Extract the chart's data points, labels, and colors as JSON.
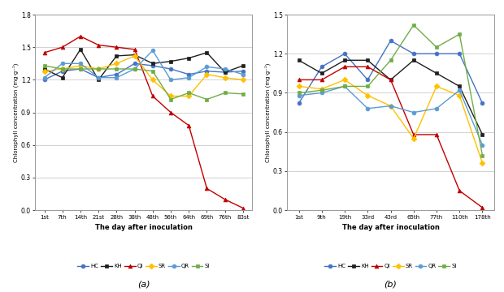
{
  "chart_a": {
    "x_labels": [
      "1st",
      "7th",
      "14th",
      "21st",
      "28th",
      "38th",
      "48th",
      "56th",
      "64th",
      "69th",
      "76th",
      "83st"
    ],
    "x_vals": [
      0,
      1,
      2,
      3,
      4,
      5,
      6,
      7,
      8,
      9,
      10,
      11
    ],
    "series": {
      "HC": [
        1.2,
        1.28,
        1.3,
        1.22,
        1.25,
        1.35,
        1.33,
        1.3,
        1.25,
        1.28,
        1.27,
        1.28
      ],
      "KH": [
        1.3,
        1.22,
        1.48,
        1.2,
        1.42,
        1.43,
        1.35,
        1.37,
        1.4,
        1.45,
        1.27,
        1.33
      ],
      "QI": [
        1.45,
        1.5,
        1.6,
        1.52,
        1.5,
        1.48,
        1.05,
        0.9,
        0.78,
        0.2,
        0.1,
        0.02
      ],
      "SR": [
        1.28,
        1.3,
        1.33,
        1.3,
        1.35,
        1.42,
        1.2,
        1.05,
        1.05,
        1.25,
        1.22,
        1.2
      ],
      "QR": [
        1.22,
        1.35,
        1.35,
        1.22,
        1.22,
        1.3,
        1.47,
        1.2,
        1.22,
        1.32,
        1.3,
        1.25
      ],
      "SI": [
        1.33,
        1.3,
        1.3,
        1.3,
        1.3,
        1.3,
        1.28,
        1.02,
        1.08,
        1.02,
        1.08,
        1.07
      ]
    },
    "colors": {
      "HC": "#4472C4",
      "KH": "#1F1F1F",
      "QI": "#C00000",
      "SR": "#FFC000",
      "QR": "#5B9BD5",
      "SI": "#70AD47"
    },
    "markers": {
      "HC": "o",
      "KH": "s",
      "QI": "^",
      "SR": "D",
      "QR": "o",
      "SI": "s"
    },
    "ylabel": "Chlorophyll concentration (mg·g⁻¹)",
    "xlabel": "The day after inoculation",
    "ylim": [
      0.0,
      1.8
    ],
    "yticks": [
      0.0,
      0.3,
      0.6,
      0.9,
      1.2,
      1.5,
      1.8
    ],
    "label": "(a)"
  },
  "chart_b": {
    "x_labels": [
      "1st",
      "9th",
      "19th",
      "33rd",
      "43rd",
      "65th",
      "77th",
      "110th",
      "178th"
    ],
    "x_vals": [
      0,
      1,
      2,
      3,
      4,
      5,
      6,
      7,
      8
    ],
    "series": {
      "HC": [
        0.82,
        1.1,
        1.2,
        1.0,
        1.3,
        1.2,
        1.2,
        1.2,
        0.82
      ],
      "KH": [
        1.15,
        1.05,
        1.15,
        1.15,
        1.0,
        1.15,
        1.05,
        0.95,
        0.58
      ],
      "QI": [
        1.0,
        1.0,
        1.1,
        1.1,
        1.0,
        0.58,
        0.58,
        0.15,
        0.02
      ],
      "SR": [
        0.95,
        0.93,
        1.0,
        0.88,
        0.8,
        0.55,
        0.95,
        0.88,
        0.36
      ],
      "QR": [
        0.88,
        0.9,
        0.95,
        0.78,
        0.8,
        0.75,
        0.78,
        0.92,
        0.5
      ],
      "SI": [
        0.9,
        0.92,
        0.95,
        0.95,
        1.15,
        1.42,
        1.25,
        1.35,
        0.42
      ]
    },
    "colors": {
      "HC": "#4472C4",
      "KH": "#1F1F1F",
      "QI": "#C00000",
      "SR": "#FFC000",
      "QR": "#5B9BD5",
      "SI": "#70AD47"
    },
    "markers": {
      "HC": "o",
      "KH": "s",
      "QI": "^",
      "SR": "D",
      "QR": "o",
      "SI": "s"
    },
    "ylabel": "Chlorophyll concentration (mg·g⁻¹)",
    "xlabel": "The day after inoculation",
    "ylim": [
      0.0,
      1.5
    ],
    "yticks": [
      0.0,
      0.3,
      0.6,
      0.9,
      1.2,
      1.5
    ],
    "label": "(b)"
  },
  "legend_order": [
    "HC",
    "KH",
    "QI",
    "SR",
    "QR",
    "SI"
  ],
  "background_color": "#ffffff",
  "fig_background": "#ffffff"
}
